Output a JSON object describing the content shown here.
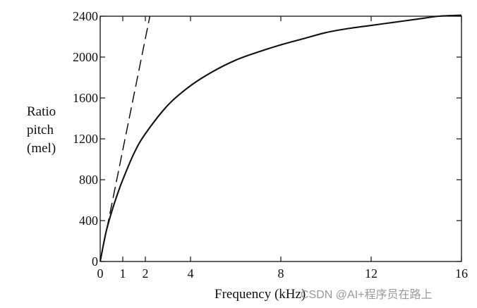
{
  "chart_data": {
    "type": "line",
    "xlabel": "Frequency (kHz)",
    "ylabel_lines": [
      "Ratio",
      "pitch",
      "(mel)"
    ],
    "xlim": [
      0,
      16
    ],
    "ylim": [
      0,
      2400
    ],
    "x_ticks": [
      0,
      1,
      2,
      4,
      8,
      12,
      16
    ],
    "y_ticks": [
      0,
      400,
      800,
      1200,
      1600,
      2000,
      2400
    ],
    "grid": false,
    "series": [
      {
        "style": "solid",
        "x": [
          0,
          0.25,
          0.5,
          0.75,
          1,
          1.5,
          2,
          3,
          4,
          5,
          6,
          7,
          8,
          9,
          10,
          11,
          12,
          13,
          14,
          15,
          16
        ],
        "y": [
          0,
          280,
          480,
          650,
          800,
          1060,
          1250,
          1530,
          1720,
          1860,
          1970,
          2050,
          2120,
          2180,
          2240,
          2280,
          2310,
          2340,
          2370,
          2400,
          2410
        ]
      },
      {
        "style": "dashed",
        "x": [
          0,
          2.2
        ],
        "y": [
          0,
          2400
        ]
      }
    ]
  },
  "watermark": "CSDN @AI+程序员在路上"
}
